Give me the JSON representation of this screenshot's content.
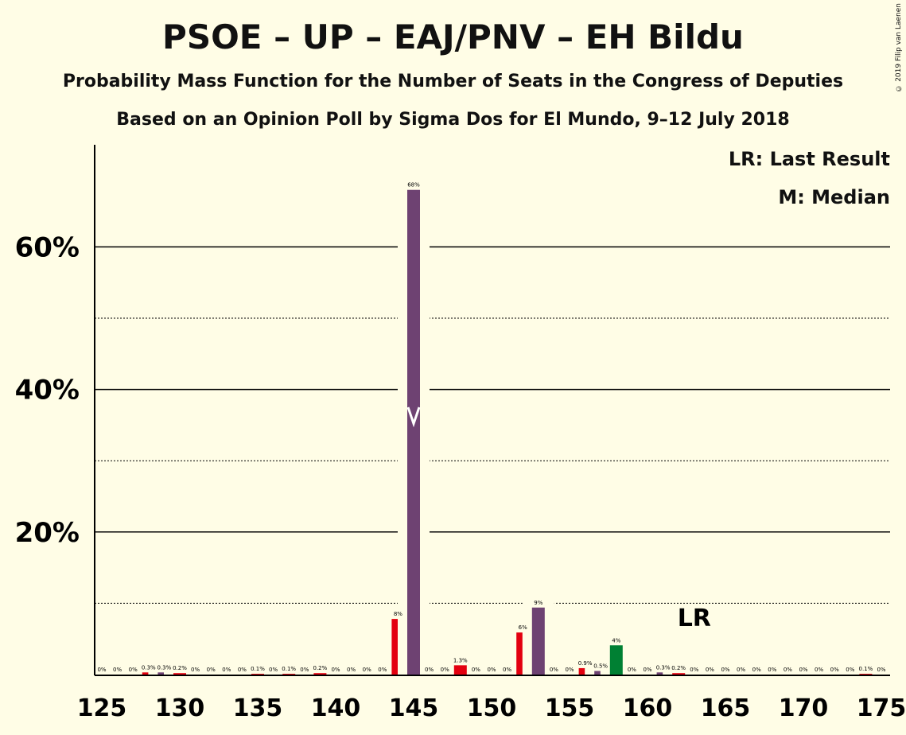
{
  "copyright": "© 2019 Filip van Laenen",
  "legend": {
    "lr": "LR: Last Result",
    "median": "M: Median"
  },
  "colors": {
    "red": "#E3000F",
    "purple": "#6E4272",
    "green": "#008033",
    "background": "#FFFDE6"
  },
  "chart_data": {
    "type": "bar",
    "title": "PSOE – UP – EAJ/PNV – EH Bildu",
    "subtitle": "Probability Mass Function for the Number of Seats in the Congress of Deputies",
    "subtitle2": "Based on an Opinion Poll by Sigma Dos for El Mundo, 9–12 July 2018",
    "xlabel": "",
    "ylabel": "",
    "xlim": [
      125,
      175
    ],
    "ylim": [
      0,
      74
    ],
    "y_ticks": [
      20,
      40,
      60
    ],
    "y_tick_labels": [
      "20%",
      "40%",
      "60%"
    ],
    "x_ticks": [
      125,
      130,
      135,
      140,
      145,
      150,
      155,
      160,
      165,
      170,
      175
    ],
    "grid": "solid lines at 20/40/60%, dotted lines at 10/30/50%",
    "median": 145,
    "last_result": 163,
    "last_result_label": "LR",
    "series": [
      {
        "values": [
          {
            "seats": 125,
            "pct": 0,
            "label": "0%",
            "color": "red"
          },
          {
            "seats": 126,
            "pct": 0,
            "label": "0%",
            "color": "red"
          },
          {
            "seats": 127,
            "pct": 0,
            "label": "0%",
            "color": "red"
          },
          {
            "seats": 128,
            "pct": 0.3,
            "label": "0.3%",
            "color": "red"
          },
          {
            "seats": 129,
            "pct": 0.3,
            "label": "0.3%",
            "color": "purple"
          },
          {
            "seats": 130,
            "pct": 0.2,
            "label": "0.2%",
            "color": "red"
          },
          {
            "seats": 131,
            "pct": 0,
            "label": "0%",
            "color": "red"
          },
          {
            "seats": 132,
            "pct": 0,
            "label": "0%",
            "color": "red"
          },
          {
            "seats": 133,
            "pct": 0,
            "label": "0%",
            "color": "red"
          },
          {
            "seats": 134,
            "pct": 0,
            "label": "0%",
            "color": "red"
          },
          {
            "seats": 135,
            "pct": 0.1,
            "label": "0.1%",
            "color": "red"
          },
          {
            "seats": 136,
            "pct": 0,
            "label": "0%",
            "color": "red"
          },
          {
            "seats": 137,
            "pct": 0.1,
            "label": "0.1%",
            "color": "red"
          },
          {
            "seats": 138,
            "pct": 0,
            "label": "0%",
            "color": "red"
          },
          {
            "seats": 139,
            "pct": 0.2,
            "label": "0.2%",
            "color": "red"
          },
          {
            "seats": 140,
            "pct": 0,
            "label": "0%",
            "color": "red"
          },
          {
            "seats": 141,
            "pct": 0,
            "label": "0%",
            "color": "red"
          },
          {
            "seats": 142,
            "pct": 0,
            "label": "0%",
            "color": "red"
          },
          {
            "seats": 143,
            "pct": 0,
            "label": "0%",
            "color": "red"
          },
          {
            "seats": 144,
            "pct": 7.8,
            "label": "8%",
            "color": "red"
          },
          {
            "seats": 145,
            "pct": 68,
            "label": "68%",
            "color": "purple"
          },
          {
            "seats": 146,
            "pct": 0,
            "label": "0%",
            "color": "red"
          },
          {
            "seats": 147,
            "pct": 0,
            "label": "0%",
            "color": "red"
          },
          {
            "seats": 148,
            "pct": 1.3,
            "label": "1.3%",
            "color": "red"
          },
          {
            "seats": 149,
            "pct": 0,
            "label": "0%",
            "color": "red"
          },
          {
            "seats": 150,
            "pct": 0,
            "label": "0%",
            "color": "red"
          },
          {
            "seats": 151,
            "pct": 0,
            "label": "0%",
            "color": "red"
          },
          {
            "seats": 152,
            "pct": 5.9,
            "label": "6%",
            "color": "red"
          },
          {
            "seats": 153,
            "pct": 9.4,
            "label": "9%",
            "color": "purple"
          },
          {
            "seats": 154,
            "pct": 0,
            "label": "0%",
            "color": "red"
          },
          {
            "seats": 155,
            "pct": 0,
            "label": "0%",
            "color": "red"
          },
          {
            "seats": 156,
            "pct": 0.9,
            "label": "0.9%",
            "color": "red"
          },
          {
            "seats": 157,
            "pct": 0.5,
            "label": "0.5%",
            "color": "purple"
          },
          {
            "seats": 158,
            "pct": 4.1,
            "label": "4%",
            "color": "green"
          },
          {
            "seats": 159,
            "pct": 0,
            "label": "0%",
            "color": "red"
          },
          {
            "seats": 160,
            "pct": 0,
            "label": "0%",
            "color": "red"
          },
          {
            "seats": 161,
            "pct": 0.3,
            "label": "0.3%",
            "color": "purple"
          },
          {
            "seats": 162,
            "pct": 0.2,
            "label": "0.2%",
            "color": "red"
          },
          {
            "seats": 163,
            "pct": 0,
            "label": "0%",
            "color": "red"
          },
          {
            "seats": 164,
            "pct": 0,
            "label": "0%",
            "color": "red"
          },
          {
            "seats": 165,
            "pct": 0,
            "label": "0%",
            "color": "red"
          },
          {
            "seats": 166,
            "pct": 0,
            "label": "0%",
            "color": "red"
          },
          {
            "seats": 167,
            "pct": 0,
            "label": "0%",
            "color": "red"
          },
          {
            "seats": 168,
            "pct": 0,
            "label": "0%",
            "color": "red"
          },
          {
            "seats": 169,
            "pct": 0,
            "label": "0%",
            "color": "red"
          },
          {
            "seats": 170,
            "pct": 0,
            "label": "0%",
            "color": "red"
          },
          {
            "seats": 171,
            "pct": 0,
            "label": "0%",
            "color": "red"
          },
          {
            "seats": 172,
            "pct": 0,
            "label": "0%",
            "color": "red"
          },
          {
            "seats": 173,
            "pct": 0,
            "label": "0%",
            "color": "red"
          },
          {
            "seats": 174,
            "pct": 0.1,
            "label": "0.1%",
            "color": "red"
          },
          {
            "seats": 175,
            "pct": 0,
            "label": "0%",
            "color": "red"
          }
        ]
      }
    ]
  }
}
